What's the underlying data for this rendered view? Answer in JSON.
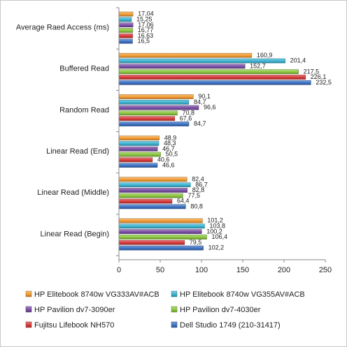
{
  "chart_data": {
    "type": "bar",
    "orientation": "horizontal",
    "categories": [
      "Average Raed Access (ms)",
      "Buffered Read",
      "Random Read",
      "Linear Read (End)",
      "Linear Read (Middle)",
      "Linear Read (Begin)"
    ],
    "series": [
      {
        "name": "HP Elitebook 8740w VG333AV#ACB",
        "color": "#f39c34",
        "values": [
          17.04,
          160.9,
          90.1,
          48.9,
          82.4,
          101.2
        ],
        "labels": [
          "17,04",
          "160,9",
          "90,1",
          "48,9",
          "82,4",
          "101,2"
        ]
      },
      {
        "name": "HP Elitebook 8740w VG355AV#ACB",
        "color": "#3cb4d2",
        "values": [
          15.25,
          201.4,
          84.7,
          48.3,
          86.7,
          103.8
        ],
        "labels": [
          "15,25",
          "201,4",
          "84,7",
          "48,3",
          "86,7",
          "103,8"
        ]
      },
      {
        "name": "HP Pavilion dv7-3090er",
        "color": "#7b4fa6",
        "values": [
          17.06,
          152.7,
          96.6,
          46.7,
          82.8,
          100.2
        ],
        "labels": [
          "17,06",
          "152,7",
          "96,6",
          "46,7",
          "82,8",
          "100,2"
        ]
      },
      {
        "name": "HP Pavilion dv7-4030er",
        "color": "#8cc63f",
        "values": [
          16.77,
          217.5,
          70.8,
          50.5,
          77.5,
          106.4
        ],
        "labels": [
          "16,77",
          "217,5",
          "70,8",
          "50,5",
          "77,5",
          "106,4"
        ]
      },
      {
        "name": "Fujitsu Lifebook NH570",
        "color": "#d93a3a",
        "values": [
          16.63,
          226.1,
          67.6,
          40.6,
          64.4,
          79.5
        ],
        "labels": [
          "16,63",
          "226,1",
          "67,6",
          "40,6",
          "64,4",
          "79,5"
        ]
      },
      {
        "name": "Dell Studio 1749 (210-31417)",
        "color": "#3d72c4",
        "values": [
          16.5,
          232.5,
          84.7,
          46.6,
          80.8,
          102.2
        ],
        "labels": [
          "16,5",
          "232,5",
          "84,7",
          "46,6",
          "80,8",
          "102,2"
        ]
      }
    ],
    "xlim": [
      0,
      250
    ],
    "xticks": [
      0,
      50,
      100,
      150,
      200,
      250
    ],
    "grid": false,
    "legend_position": "bottom"
  }
}
